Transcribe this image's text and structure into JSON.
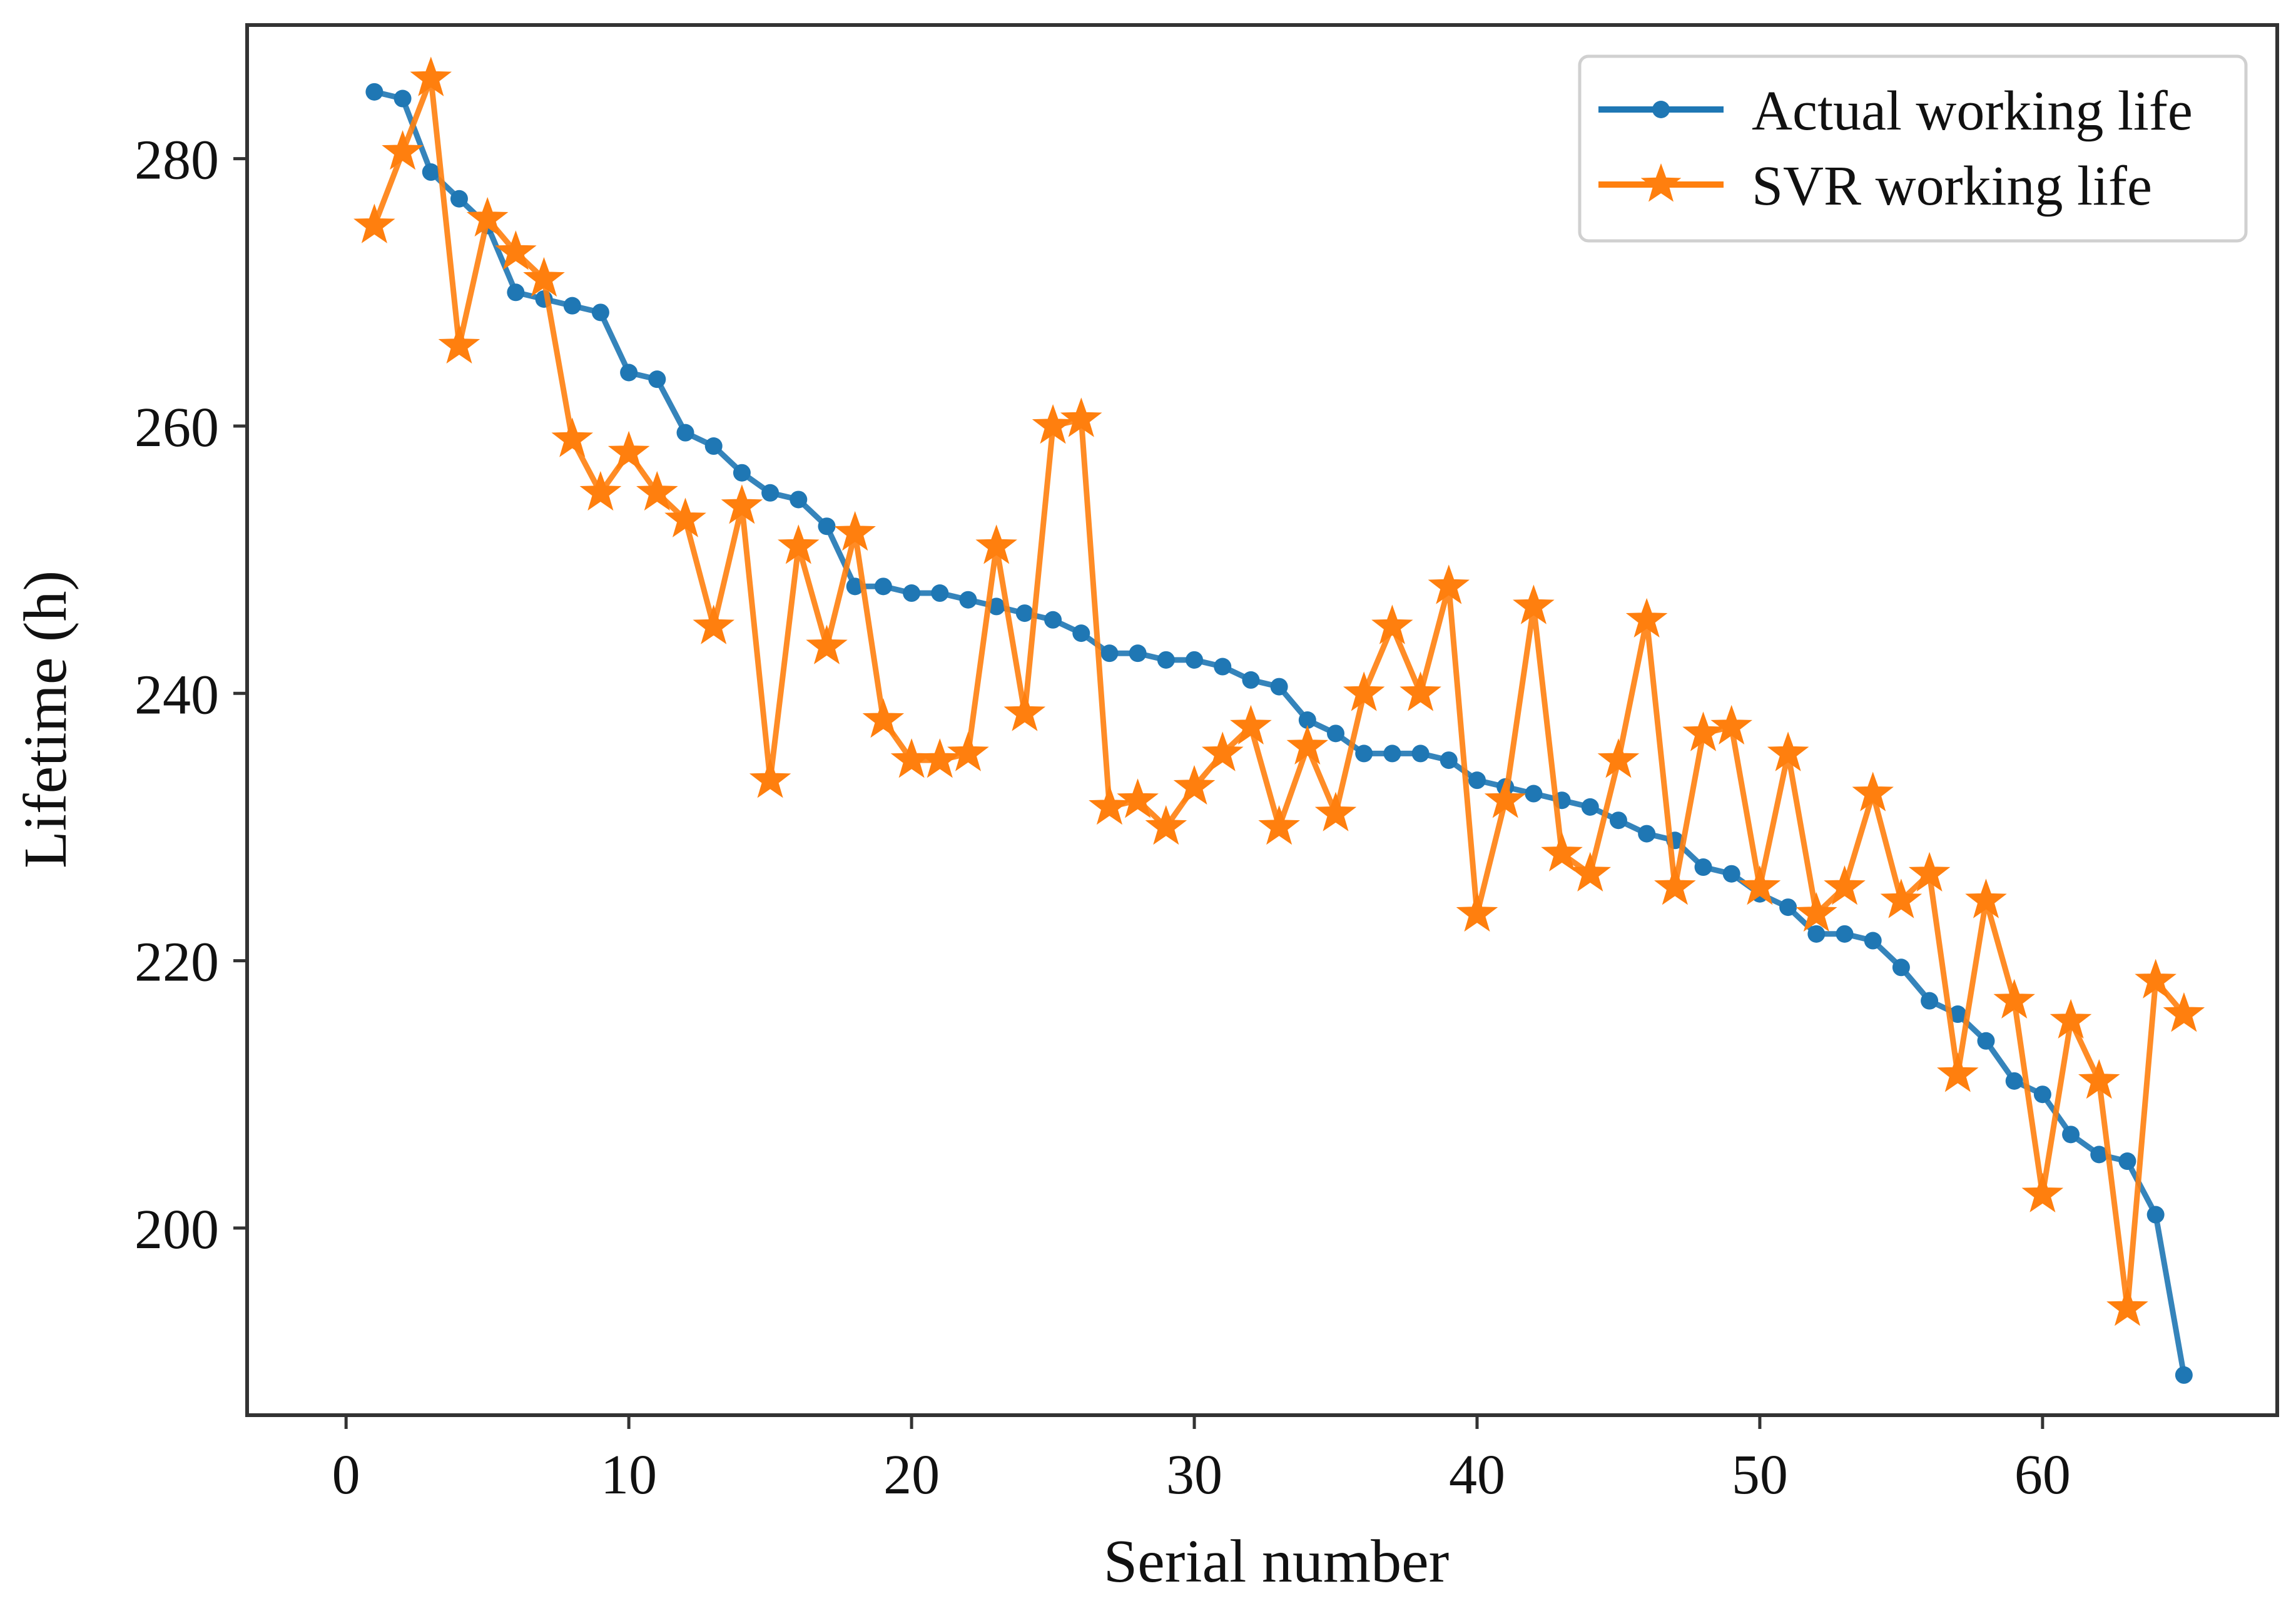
{
  "chart_data": {
    "type": "line",
    "title": "",
    "xlabel": "Serial number",
    "ylabel": "Lifetime (h)",
    "xlim": [
      -3.5,
      68.3
    ],
    "ylim": [
      186.0,
      290.0
    ],
    "xticks": [
      0,
      10,
      20,
      30,
      40,
      50,
      60
    ],
    "yticks": [
      200,
      220,
      240,
      260,
      280
    ],
    "xtick_labels": [
      "0",
      "10",
      "20",
      "30",
      "40",
      "50",
      "60"
    ],
    "ytick_labels": [
      "200",
      "220",
      "240",
      "260",
      "280"
    ],
    "grid": false,
    "legend_position": "top-right",
    "x": [
      1,
      2,
      3,
      4,
      5,
      6,
      7,
      8,
      9,
      10,
      11,
      12,
      13,
      14,
      15,
      16,
      17,
      18,
      19,
      20,
      21,
      22,
      23,
      24,
      25,
      26,
      27,
      28,
      29,
      30,
      31,
      32,
      33,
      34,
      35,
      36,
      37,
      38,
      39,
      40,
      41,
      42,
      43,
      44,
      45,
      46,
      47,
      48,
      49,
      50,
      51,
      52,
      53,
      54,
      55,
      56,
      57,
      58,
      59,
      60,
      61,
      62,
      63,
      64,
      65
    ],
    "series": [
      {
        "name": "Actual working life",
        "color": "#1f77b4",
        "marker": "dot",
        "values": [
          285,
          284.5,
          279,
          277,
          275,
          270,
          269.5,
          269,
          268.5,
          264,
          263.5,
          259.5,
          258.5,
          256.5,
          255,
          254.5,
          252.5,
          248,
          248,
          247.5,
          247.5,
          247,
          246.5,
          246,
          245.5,
          244.5,
          243,
          243,
          242.5,
          242.5,
          242,
          241,
          240.5,
          238,
          237,
          235.5,
          235.5,
          235.5,
          235,
          233.5,
          233,
          232.5,
          232,
          231.5,
          230.5,
          229.5,
          229,
          227,
          226.5,
          225,
          224,
          222,
          222,
          221.5,
          219.5,
          217,
          216,
          214,
          211,
          210,
          207,
          205.5,
          205,
          201,
          189
        ]
      },
      {
        "name": "SVR working life",
        "color": "#ff7f0e",
        "marker": "star",
        "values": [
          275,
          280.5,
          286,
          266,
          275.5,
          273,
          271,
          259,
          255,
          258,
          255,
          253,
          245,
          254,
          233.5,
          251,
          243.5,
          252,
          238,
          235,
          235,
          235.5,
          251,
          238.5,
          260,
          260.5,
          231.5,
          232,
          230,
          233,
          235.5,
          237.5,
          230,
          236,
          231,
          240,
          245,
          240,
          248,
          223.5,
          232,
          246.5,
          228,
          226.5,
          235,
          245.5,
          225.5,
          237,
          237.5,
          225.5,
          235.5,
          223.5,
          225.5,
          232.5,
          224.5,
          226.5,
          211.5,
          224.5,
          217,
          202.5,
          215.5,
          211,
          194,
          218.5,
          216
        ]
      }
    ]
  }
}
